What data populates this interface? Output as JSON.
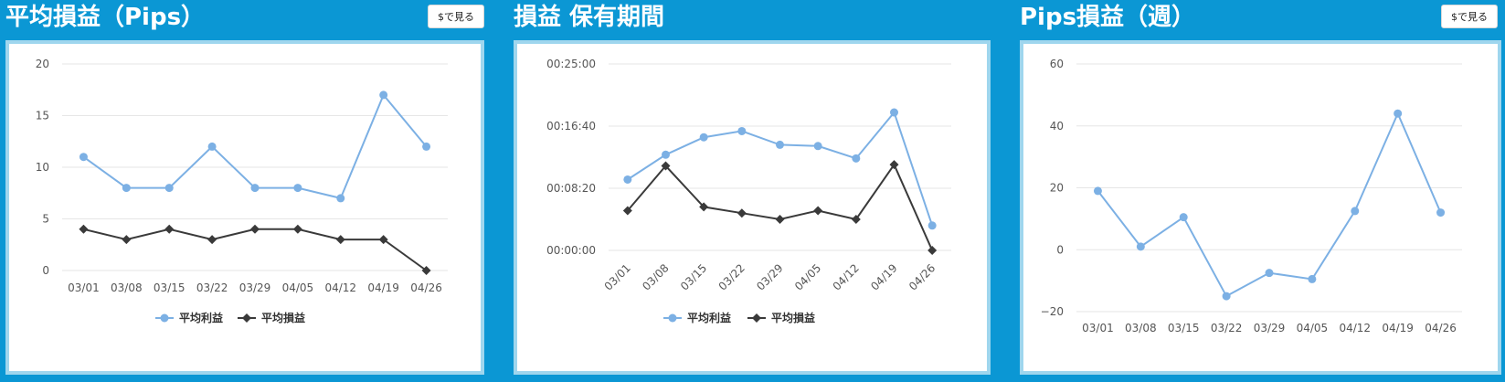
{
  "colors": {
    "background": "#0b97d4",
    "profit": "#7cb0e4",
    "loss": "#3a3a3a",
    "border": "#9fd6ee"
  },
  "panels": [
    {
      "title": "平均損益（Pips）",
      "button": "$で見る"
    },
    {
      "title": "損益 保有期間",
      "button": ""
    },
    {
      "title": "Pips損益（週）",
      "button": "$で見る"
    }
  ],
  "chart_data": [
    {
      "type": "line",
      "categories": [
        "03/01",
        "03/08",
        "03/15",
        "03/22",
        "03/29",
        "04/05",
        "04/12",
        "04/19",
        "04/26"
      ],
      "ylim": [
        0,
        20
      ],
      "yticks": [
        0,
        5,
        10,
        15,
        20
      ],
      "ytick_labels": [
        "0",
        "5",
        "10",
        "15",
        "20"
      ],
      "series": [
        {
          "name": "平均利益",
          "values": [
            11,
            8,
            8,
            12,
            8,
            8,
            7,
            17,
            12
          ],
          "marker": "circle",
          "color": "#7cb0e4"
        },
        {
          "name": "平均損益",
          "values": [
            4,
            3,
            4,
            3,
            4,
            4,
            3,
            3,
            0
          ],
          "marker": "diamond",
          "color": "#3a3a3a"
        }
      ],
      "legend": "bottom",
      "grid": true
    },
    {
      "type": "line",
      "categories": [
        "03/01",
        "03/08",
        "03/15",
        "03/22",
        "03/29",
        "04/05",
        "04/12",
        "04/19",
        "04/26"
      ],
      "ylim": [
        0,
        1500
      ],
      "yticks": [
        0,
        500,
        1000,
        1500
      ],
      "ytick_labels": [
        "00:00:00",
        "00:08:20",
        "00:16:40",
        "00:25:00"
      ],
      "x_rotated": true,
      "series": [
        {
          "name": "平均利益",
          "values": [
            570,
            770,
            910,
            960,
            850,
            840,
            740,
            1110,
            200
          ],
          "marker": "circle",
          "color": "#7cb0e4"
        },
        {
          "name": "平均損益",
          "values": [
            320,
            680,
            350,
            300,
            250,
            320,
            250,
            690,
            0
          ],
          "marker": "diamond",
          "color": "#3a3a3a"
        }
      ],
      "legend": "bottom",
      "grid": true
    },
    {
      "type": "line",
      "categories": [
        "03/01",
        "03/08",
        "03/15",
        "03/22",
        "03/29",
        "04/05",
        "04/12",
        "04/19",
        "04/26"
      ],
      "ylim": [
        -20,
        60
      ],
      "yticks": [
        -20,
        0,
        20,
        40,
        60
      ],
      "ytick_labels": [
        "−20",
        "0",
        "20",
        "40",
        "60"
      ],
      "series": [
        {
          "values": [
            19,
            1,
            10.5,
            -15,
            -7.5,
            -9.5,
            12.5,
            44,
            12
          ],
          "marker": "circle",
          "color": "#7cb0e4"
        }
      ],
      "grid": true
    }
  ]
}
